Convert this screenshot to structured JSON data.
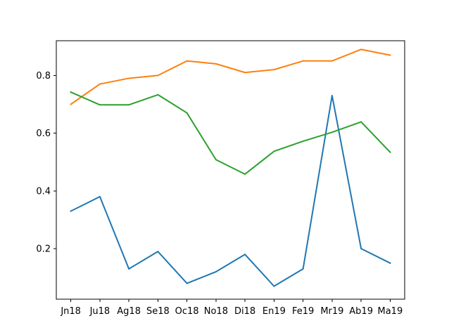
{
  "chart_data": {
    "type": "line",
    "title": "",
    "xlabel": "",
    "ylabel": "",
    "categories": [
      "Jn18",
      "Ju18",
      "Ag18",
      "Se18",
      "Oc18",
      "No18",
      "Di18",
      "En19",
      "Fe19",
      "Mr19",
      "Ab19",
      "Ma19"
    ],
    "ylim": [
      0.025,
      0.92
    ],
    "yticks": [
      0.2,
      0.4,
      0.6,
      0.8
    ],
    "ytick_labels": [
      "0.2",
      "0.4",
      "0.6",
      "0.8"
    ],
    "grid": false,
    "legend": "none",
    "series": [
      {
        "color": "#1f77b4",
        "values": [
          0.33,
          0.38,
          0.13,
          0.19,
          0.08,
          0.12,
          0.18,
          0.07,
          0.13,
          0.73,
          0.2,
          0.15
        ]
      },
      {
        "color": "#ff7f0e",
        "values": [
          0.7,
          0.77,
          0.79,
          0.8,
          0.85,
          0.84,
          0.81,
          0.82,
          0.85,
          0.85,
          0.89,
          0.87
        ]
      },
      {
        "color": "#2ca02c",
        "values": [
          0.742,
          0.698,
          0.698,
          0.733,
          0.67,
          0.508,
          0.458,
          0.537,
          0.572,
          0.603,
          0.639,
          0.534
        ]
      }
    ]
  }
}
